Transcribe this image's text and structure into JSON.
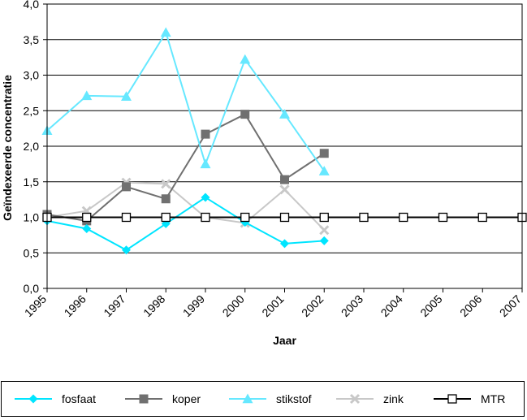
{
  "chart_data": {
    "type": "line",
    "title": "",
    "xlabel": "Jaar",
    "ylabel": "Geïndexeerde concentratie",
    "categories": [
      "1995",
      "1996",
      "1997",
      "1998",
      "1999",
      "2000",
      "2001",
      "2002",
      "2003",
      "2004",
      "2005",
      "2006",
      "2007"
    ],
    "y_tick_labels": [
      "0,0",
      "0,5",
      "1,0",
      "1,5",
      "2,0",
      "2,5",
      "3,0",
      "3,5",
      "4,0"
    ],
    "ylim": [
      0,
      4
    ],
    "grid": "horizontal",
    "legend_position": "bottom",
    "series": [
      {
        "name": "fosfaat",
        "color": "#00e5ff",
        "marker": "diamond",
        "values": [
          0.95,
          0.84,
          0.54,
          0.91,
          1.28,
          0.93,
          0.63,
          0.67,
          null,
          null,
          null,
          null,
          null
        ]
      },
      {
        "name": "koper",
        "color": "#707070",
        "marker": "square",
        "values": [
          1.04,
          0.95,
          1.43,
          1.26,
          2.17,
          2.45,
          1.53,
          1.9,
          null,
          null,
          null,
          null,
          null
        ]
      },
      {
        "name": "stikstof",
        "color": "#66e8ff",
        "marker": "triangle",
        "values": [
          2.22,
          2.71,
          2.7,
          3.6,
          1.75,
          3.22,
          2.45,
          1.65,
          null,
          null,
          null,
          null,
          null
        ]
      },
      {
        "name": "zink",
        "color": "#c8c8c8",
        "marker": "x",
        "values": [
          1.0,
          1.09,
          1.49,
          1.47,
          1.0,
          0.92,
          1.39,
          0.82,
          null,
          null,
          null,
          null,
          null
        ]
      },
      {
        "name": "MTR",
        "color": "#000000",
        "marker": "open-square",
        "values": [
          1.0,
          1.0,
          1.0,
          1.0,
          1.0,
          1.0,
          1.0,
          1.0,
          1.0,
          1.0,
          1.0,
          1.0,
          1.0
        ]
      }
    ]
  }
}
